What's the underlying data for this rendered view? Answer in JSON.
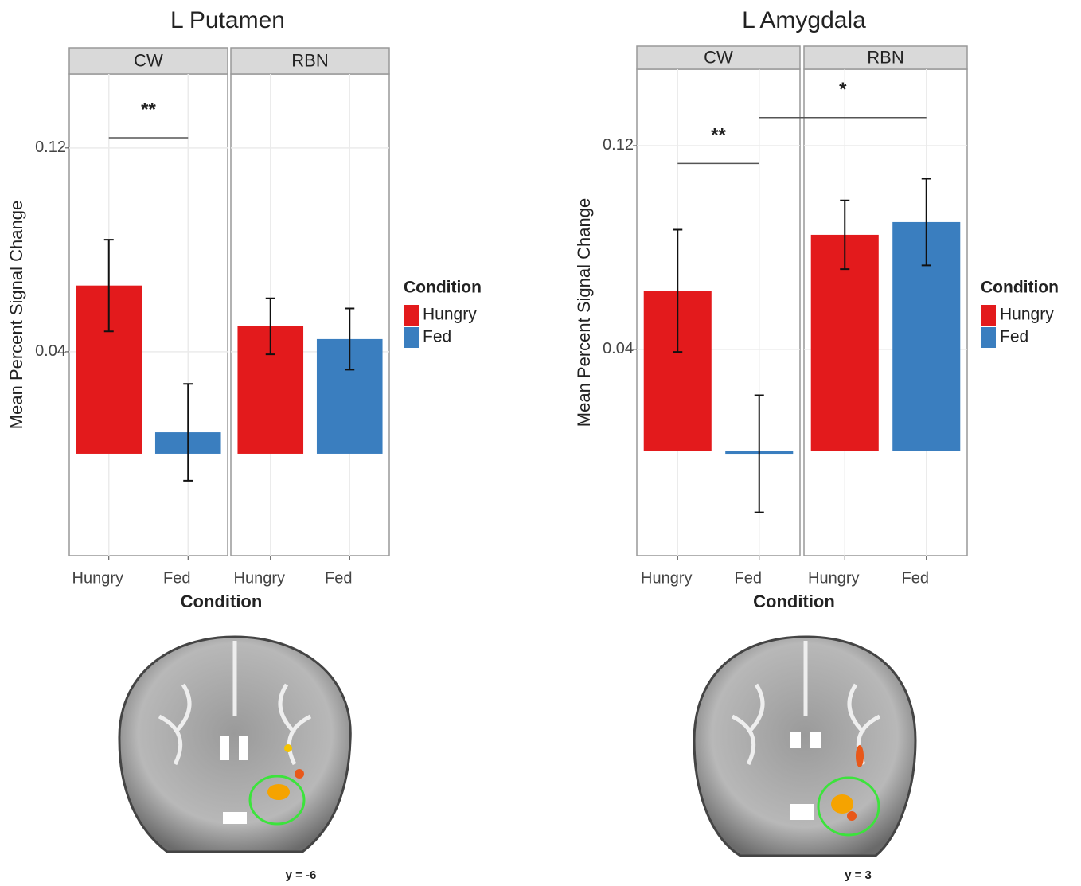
{
  "chart_data": [
    {
      "type": "bar",
      "title": "L Putamen",
      "facets": [
        "CW",
        "RBN"
      ],
      "categories": [
        "Hungry",
        "Fed"
      ],
      "series": [
        {
          "name": "Hungry",
          "color": "#e31a1c",
          "values": [
            0.066,
            0.05
          ],
          "errors": [
            0.018,
            0.011
          ]
        },
        {
          "name": "Fed",
          "color": "#3a7ebf",
          "values": [
            0.0084,
            0.045
          ],
          "errors": [
            0.019,
            0.012
          ]
        }
      ],
      "ylim": [
        -0.04,
        0.149
      ],
      "yticks": [
        0.04,
        0.12
      ],
      "grid": true,
      "x_label": "Condition",
      "y_label": "Mean Percent Signal Change",
      "legend_title": "Condition",
      "legend": "right",
      "annotations": [
        {
          "text": "**",
          "y": 0.124
        }
      ],
      "image_label": "y = -6"
    },
    {
      "type": "bar",
      "title": "L Amygdala",
      "facets": [
        "CW",
        "RBN"
      ],
      "categories": [
        "Hungry",
        "Fed"
      ],
      "series": [
        {
          "name": "Hungry",
          "color": "#e31a1c",
          "values": [
            0.063,
            0.085
          ],
          "errors": [
            0.024,
            0.0135
          ]
        },
        {
          "name": "Fed",
          "color": "#3a7ebf",
          "values": [
            -0.001,
            0.09
          ],
          "errors": [
            0.023,
            0.017
          ]
        }
      ],
      "ylim": [
        -0.041,
        0.15
      ],
      "yticks": [
        0.04,
        0.12
      ],
      "grid": true,
      "x_label": "Condition",
      "y_label": "Mean Percent Signal Change",
      "legend_title": "Condition",
      "legend": "right",
      "annotations": [
        {
          "text": "**",
          "y": 0.113
        },
        {
          "text": "*",
          "y": 0.131
        }
      ],
      "image_label": "y = 3"
    }
  ]
}
